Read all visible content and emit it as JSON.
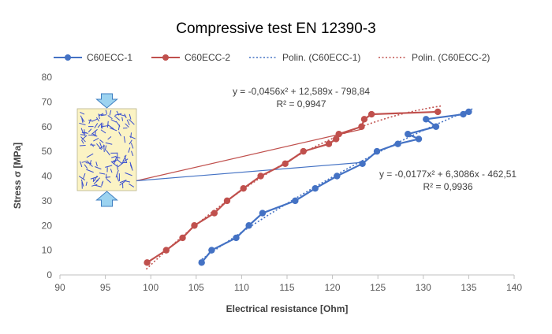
{
  "chart_data": {
    "type": "scatter",
    "title": "Compressive test EN 12390-3",
    "xlabel": "Electrical resistance [Ohm]",
    "ylabel": "Stress σ [MPa]",
    "xlim": [
      90,
      140
    ],
    "ylim": [
      0,
      80
    ],
    "xticks": [
      "90",
      "95",
      "100",
      "105",
      "110",
      "115",
      "120",
      "125",
      "130",
      "135",
      "140"
    ],
    "yticks": [
      "0",
      "10",
      "20",
      "30",
      "40",
      "50",
      "60",
      "70",
      "80"
    ],
    "grid": false,
    "legend_position": "top",
    "series": [
      {
        "name": "C60ECC-1",
        "color": "#4472c4",
        "marker": "circle",
        "points": [
          {
            "x": 105.6,
            "y": 5
          },
          {
            "x": 106.7,
            "y": 10
          },
          {
            "x": 109.4,
            "y": 15
          },
          {
            "x": 110.8,
            "y": 20
          },
          {
            "x": 112.3,
            "y": 25
          },
          {
            "x": 115.9,
            "y": 30
          },
          {
            "x": 118.1,
            "y": 35
          },
          {
            "x": 120.5,
            "y": 40
          },
          {
            "x": 123.3,
            "y": 45
          },
          {
            "x": 124.9,
            "y": 50
          },
          {
            "x": 127.2,
            "y": 53
          },
          {
            "x": 129.5,
            "y": 55
          },
          {
            "x": 128.3,
            "y": 57
          },
          {
            "x": 131.4,
            "y": 60
          },
          {
            "x": 130.3,
            "y": 63
          },
          {
            "x": 134.4,
            "y": 65
          },
          {
            "x": 135.0,
            "y": 66
          }
        ]
      },
      {
        "name": "C60ECC-2",
        "color": "#c0504d",
        "marker": "circle",
        "points": [
          {
            "x": 99.6,
            "y": 5
          },
          {
            "x": 101.7,
            "y": 10
          },
          {
            "x": 103.5,
            "y": 15
          },
          {
            "x": 104.8,
            "y": 20
          },
          {
            "x": 107.0,
            "y": 25
          },
          {
            "x": 108.4,
            "y": 30
          },
          {
            "x": 110.2,
            "y": 35
          },
          {
            "x": 112.1,
            "y": 40
          },
          {
            "x": 114.8,
            "y": 45
          },
          {
            "x": 116.8,
            "y": 50
          },
          {
            "x": 119.6,
            "y": 53
          },
          {
            "x": 120.4,
            "y": 55
          },
          {
            "x": 120.7,
            "y": 57
          },
          {
            "x": 123.2,
            "y": 60
          },
          {
            "x": 123.5,
            "y": 63
          },
          {
            "x": 124.3,
            "y": 65
          },
          {
            "x": 131.6,
            "y": 66
          }
        ]
      },
      {
        "name": "Polin. (C60ECC-1)",
        "color": "#4472c4",
        "style": "dotted",
        "trendline": {
          "type": "polynomial",
          "coefficients": [
            -0.0177,
            6.3086,
            -462.51
          ],
          "x_range": [
            105.3,
            135.5
          ]
        }
      },
      {
        "name": "Polin. (C60ECC-2)",
        "color": "#c0504d",
        "style": "dotted",
        "trendline": {
          "type": "polynomial",
          "coefficients": [
            -0.0456,
            12.589,
            -798.84
          ],
          "x_range": [
            99.5,
            132.0
          ]
        }
      }
    ],
    "annotations": [
      {
        "series": "C60ECC-2",
        "equation": "y = -0,0456x² + 12,589x - 798,84",
        "r2": "R² = 0,9947"
      },
      {
        "series": "C60ECC-1",
        "equation": "y = -0,0177x² + 6,3086x - 462,51",
        "r2": "R² = 0,9936"
      }
    ],
    "pointer_lines": [
      {
        "color": "#c0504d",
        "target": {
          "x": 123.3,
          "y": 59
        }
      },
      {
        "color": "#4472c4",
        "target": {
          "x": 123.2,
          "y": 45.5
        }
      }
    ],
    "specimen_colors": {
      "fill": "#fbf3c4",
      "fibers": "#3a4fd0",
      "arrow_fill": "#9cd3f0",
      "arrow_stroke": "#3f7fc1",
      "axis": "#bfbfbf"
    }
  }
}
